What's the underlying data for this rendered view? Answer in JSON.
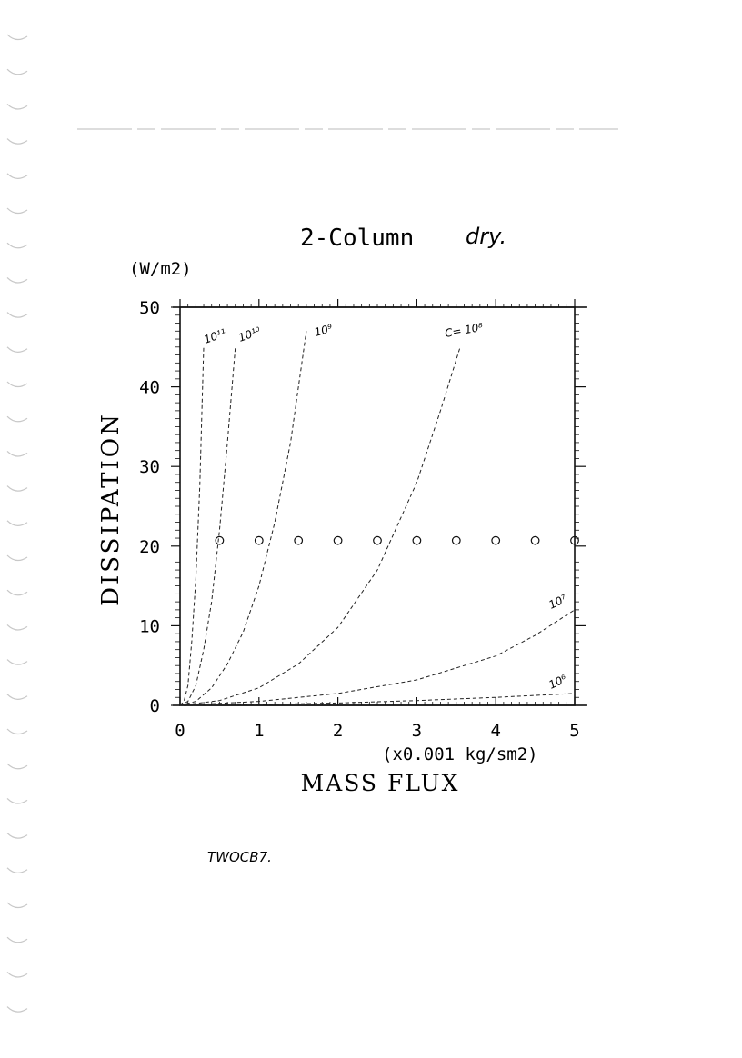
{
  "chart_data": {
    "type": "line",
    "title": "2-Column",
    "title_annotation": "dry.",
    "xlabel": "MASS FLUX",
    "xunit": "(x0.001 kg/sm2)",
    "ylabel": "DISSIPATION",
    "yunit": "(W/m2)",
    "xlim": [
      0,
      5
    ],
    "ylim": [
      0,
      50
    ],
    "xticks": [
      0,
      1,
      2,
      3,
      4,
      5
    ],
    "yticks": [
      0,
      10,
      20,
      30,
      40,
      50
    ],
    "x_tick_labels": [
      "0",
      "1",
      "2",
      "3",
      "4",
      "5"
    ],
    "y_tick_labels": [
      "0",
      "10",
      "20",
      "30",
      "40",
      "50"
    ],
    "grid": false,
    "line_style": "dashed",
    "series": [
      {
        "name": "10¹¹",
        "x": [
          0,
          0.05,
          0.1,
          0.15,
          0.2,
          0.25,
          0.3
        ],
        "y": [
          0,
          0.5,
          2.5,
          8.2,
          16.0,
          27.5,
          45.0
        ]
      },
      {
        "name": "10¹⁰",
        "x": [
          0,
          0.1,
          0.2,
          0.3,
          0.4,
          0.5,
          0.6,
          0.7
        ],
        "y": [
          0,
          0.5,
          2.5,
          7.0,
          13.0,
          22.0,
          33.0,
          45.0
        ]
      },
      {
        "name": "10⁹",
        "x": [
          0,
          0.2,
          0.4,
          0.6,
          0.8,
          1.0,
          1.2,
          1.4,
          1.6
        ],
        "y": [
          0,
          0.5,
          2.2,
          5.2,
          9.2,
          15.0,
          23.0,
          33.0,
          47.0
        ]
      },
      {
        "name": "C= 10⁸",
        "x": [
          0,
          0.5,
          1.0,
          1.5,
          2.0,
          2.5,
          3.0,
          3.3,
          3.55
        ],
        "y": [
          0,
          0.6,
          2.2,
          5.2,
          9.8,
          17.0,
          28.0,
          37.0,
          45.0
        ]
      },
      {
        "name": "10⁷",
        "x": [
          0,
          1,
          2,
          3,
          4,
          4.5,
          5
        ],
        "y": [
          0,
          0.5,
          1.5,
          3.2,
          6.2,
          8.8,
          12.0
        ]
      },
      {
        "name": "10⁶",
        "x": [
          0,
          1,
          2,
          3,
          4,
          5
        ],
        "y": [
          0,
          0.1,
          0.3,
          0.6,
          1.0,
          1.5
        ]
      },
      {
        "name": "",
        "marker": "circle",
        "x": [
          0.5,
          1.0,
          1.5,
          2.0,
          2.5,
          3.0,
          3.5,
          4.0,
          4.5,
          5.0
        ],
        "y": [
          20.7,
          20.7,
          20.7,
          20.7,
          20.7,
          20.7,
          20.7,
          20.7,
          20.7,
          20.7
        ]
      }
    ],
    "annotations": [
      "10¹¹",
      "10¹⁰",
      "10⁹",
      "C= 10⁸",
      "10⁷",
      "10⁶"
    ]
  },
  "footer_note": "TWOCB7."
}
